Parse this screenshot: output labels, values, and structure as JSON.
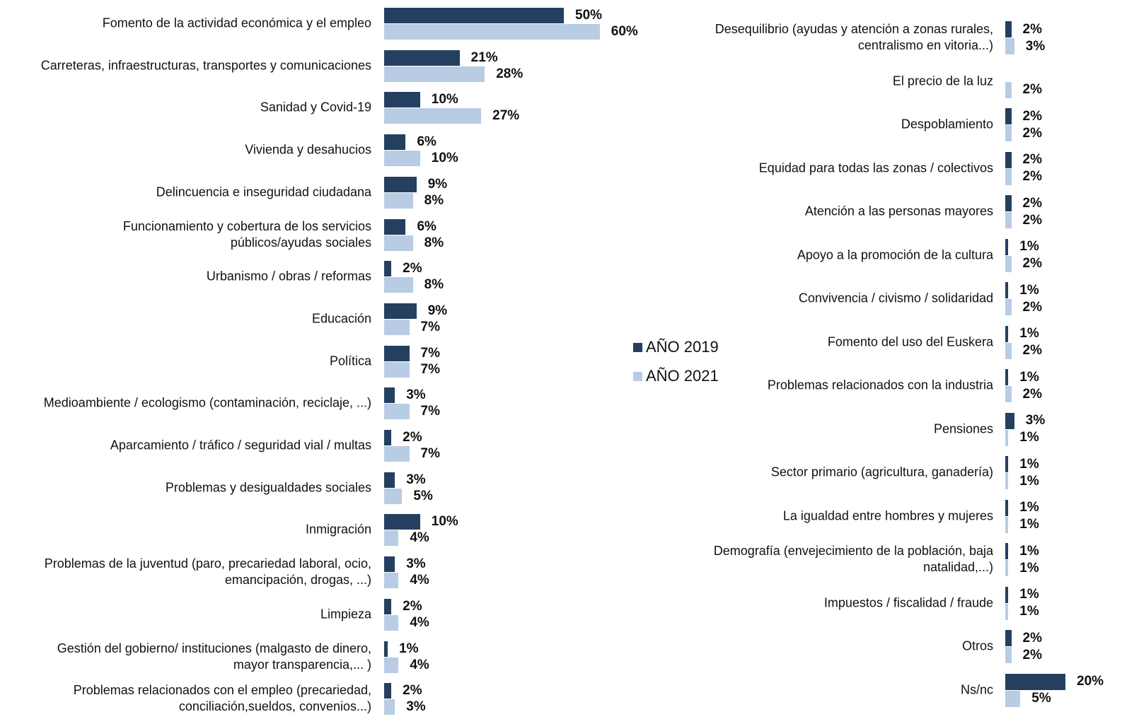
{
  "chart_data": [
    {
      "type": "bar",
      "orientation": "horizontal",
      "xlim": [
        0,
        100
      ],
      "categories": [
        "Fomento de la actividad económica y el empleo",
        "Carreteras, infraestructuras, transportes y comunicaciones",
        "Sanidad y Covid-19",
        "Vivienda y desahucios",
        "Delincuencia e inseguridad ciudadana",
        "Funcionamiento y cobertura de los servicios\npúblicos/ayudas sociales",
        "Urbanismo / obras / reformas",
        "Educación",
        "Política",
        "Medioambiente / ecologismo (contaminación, reciclaje, ...)",
        "Aparcamiento / tráfico / seguridad vial / multas",
        "Problemas y desigualdades sociales",
        "Inmigración",
        "Problemas de la juventud (paro, precariedad laboral, ocio,\nemancipación, drogas, ...)",
        "Limpieza",
        "Gestión del gobierno/ instituciones (malgasto de dinero,\nmayor transparencia,... )",
        "Problemas relacionados con el empleo (precariedad,\nconciliación,sueldos, convenios...)"
      ],
      "series": [
        {
          "name": "AÑO 2019",
          "color": "#243f60",
          "values": [
            50,
            21,
            10,
            6,
            9,
            6,
            2,
            9,
            7,
            3,
            2,
            3,
            10,
            3,
            2,
            1,
            2
          ],
          "value_labels": [
            "50%",
            "21%",
            "10%",
            "6%",
            "9%",
            "6%",
            "2%",
            "9%",
            "7%",
            "3%",
            "2%",
            "3%",
            "10%",
            "3%",
            "2%",
            "1%",
            "2%"
          ]
        },
        {
          "name": "AÑO 2021",
          "color": "#b8cce4",
          "values": [
            60,
            28,
            27,
            10,
            8,
            8,
            8,
            7,
            7,
            7,
            7,
            5,
            4,
            4,
            4,
            4,
            3
          ],
          "value_labels": [
            "60%",
            "28%",
            "27%",
            "10%",
            "8%",
            "8%",
            "8%",
            "7%",
            "7%",
            "7%",
            "7%",
            "5%",
            "4%",
            "4%",
            "4%",
            "4%",
            "3%"
          ]
        }
      ]
    },
    {
      "type": "bar",
      "orientation": "horizontal",
      "xlim": [
        0,
        100
      ],
      "categories": [
        "Desequilibrio (ayudas y atención a zonas rurales,\ncentralismo en vitoria...)",
        "El precio de la luz",
        "Despoblamiento",
        "Equidad para todas las zonas / colectivos",
        "Atención a las personas mayores",
        "Apoyo a la promoción de la cultura",
        "Convivencia / civismo / solidaridad",
        "Fomento del uso del Euskera",
        "Problemas relacionados con la industria",
        "Pensiones",
        "Sector primario (agricultura, ganadería)",
        "La igualdad entre hombres y mujeres",
        "Demografía (envejecimiento de la población, baja\nnatalidad,...)",
        "Impuestos / fiscalidad / fraude",
        "Otros",
        "Ns/nc"
      ],
      "series": [
        {
          "color": "#243f60",
          "values": [
            2,
            null,
            2,
            2,
            2,
            1,
            1,
            1,
            1,
            3,
            1,
            1,
            1,
            1,
            2,
            20
          ],
          "value_labels": [
            "2%",
            null,
            "2%",
            "2%",
            "2%",
            "1%",
            "1%",
            "1%",
            "1%",
            "3%",
            "1%",
            "1%",
            "1%",
            "1%",
            "2%",
            "20%"
          ]
        },
        {
          "color": "#b8cce4",
          "values": [
            3,
            2,
            2,
            2,
            2,
            2,
            2,
            2,
            2,
            1,
            1,
            1,
            1,
            1,
            2,
            5
          ],
          "value_labels": [
            "3%",
            "2%",
            "2%",
            "2%",
            "2%",
            "2%",
            "2%",
            "2%",
            "2%",
            "1%",
            "1%",
            "1%",
            "1%",
            "1%",
            "2%",
            "5%"
          ]
        }
      ]
    }
  ]
}
